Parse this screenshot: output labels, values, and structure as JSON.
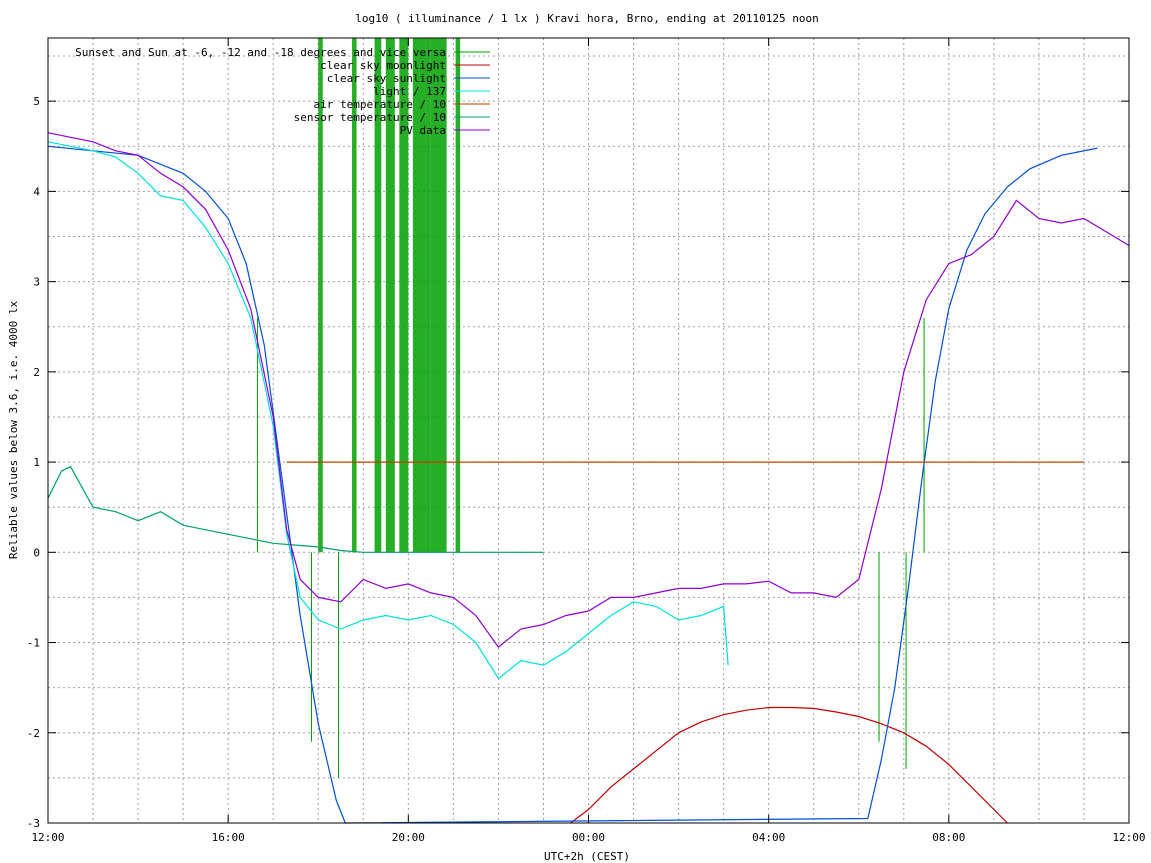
{
  "chart_data": {
    "type": "line",
    "title": "log10 ( illuminance / 1 lx ) Kravi hora, Brno, ending at 20110125 noon",
    "xlabel": "UTC+2h (CEST)",
    "ylabel": "Reliable values below 3.6, i.e. 4000 lx",
    "xlim_hours": [
      0,
      24
    ],
    "ylim": [
      -3,
      5.7
    ],
    "x_ticks": [
      {
        "h": 0,
        "label": "12:00"
      },
      {
        "h": 4,
        "label": "16:00"
      },
      {
        "h": 8,
        "label": "20:00"
      },
      {
        "h": 12,
        "label": "00:00"
      },
      {
        "h": 16,
        "label": "04:00"
      },
      {
        "h": 20,
        "label": "08:00"
      },
      {
        "h": 24,
        "label": "12:00"
      }
    ],
    "y_ticks": [
      {
        "v": -3,
        "label": "-3"
      },
      {
        "v": -2,
        "label": "-2"
      },
      {
        "v": -1,
        "label": "-1"
      },
      {
        "v": 0,
        "label": "0"
      },
      {
        "v": 1,
        "label": "1"
      },
      {
        "v": 2,
        "label": "2"
      },
      {
        "v": 3,
        "label": "3"
      },
      {
        "v": 4,
        "label": "4"
      },
      {
        "v": 5,
        "label": "5"
      }
    ],
    "grid": true,
    "legend_position": "top-left",
    "series": [
      {
        "name": "Sunset and Sun at -6, -12 and -18 degrees and vice versa",
        "color": "#00a000",
        "style": "impulses",
        "x": [
          4.65,
          5.85,
          6.45,
          18.45,
          19.05,
          19.45
        ],
        "y": [
          2.6,
          -2.1,
          -2.5,
          -2.1,
          -2.4,
          2.6
        ]
      },
      {
        "name": "clear sky moonlight",
        "color": "#c00000",
        "x": [
          11.6,
          12.0,
          12.5,
          13.0,
          13.5,
          14.0,
          14.5,
          15.0,
          15.5,
          16.0,
          16.5,
          17.0,
          17.5,
          18.0,
          18.5,
          19.0,
          19.5,
          20.0,
          20.5,
          21.0,
          21.3
        ],
        "y": [
          -3.0,
          -2.85,
          -2.6,
          -2.4,
          -2.2,
          -2.0,
          -1.88,
          -1.8,
          -1.75,
          -1.72,
          -1.72,
          -1.73,
          -1.77,
          -1.82,
          -1.9,
          -2.0,
          -2.15,
          -2.35,
          -2.6,
          -2.85,
          -3.0
        ]
      },
      {
        "name": "clear sky sunlight",
        "color": "#0050d0",
        "x": [
          0,
          1,
          2,
          3,
          3.5,
          4,
          4.4,
          4.8,
          5.2,
          5.6,
          6.0,
          6.4,
          6.6,
          18.2,
          18.5,
          18.8,
          19.1,
          19.4,
          19.7,
          20.0,
          20.4,
          20.8,
          21.3,
          21.8,
          22.5,
          23.3
        ],
        "y": [
          4.5,
          4.45,
          4.4,
          4.2,
          4.0,
          3.7,
          3.2,
          2.3,
          0.8,
          -0.7,
          -1.9,
          -2.75,
          -3.0,
          -2.95,
          -2.3,
          -1.5,
          -0.4,
          0.8,
          1.9,
          2.7,
          3.35,
          3.75,
          4.05,
          4.25,
          4.4,
          4.48
        ]
      },
      {
        "name": "light / 137",
        "color": "#00e0e0",
        "x": [
          0,
          0.5,
          1,
          1.5,
          2,
          2.5,
          3,
          3.5,
          4,
          4.5,
          5,
          5.3,
          5.6,
          6.0,
          6.5,
          7.0,
          7.5,
          8.0,
          8.5,
          9.0,
          9.5,
          10.0,
          10.5,
          11.0,
          11.5,
          12.0,
          12.5,
          13.0,
          13.5,
          14.0,
          14.5,
          15.0,
          15.1
        ],
        "y": [
          4.55,
          4.5,
          4.45,
          4.38,
          4.2,
          3.95,
          3.9,
          3.6,
          3.2,
          2.6,
          1.4,
          0.2,
          -0.5,
          -0.75,
          -0.85,
          -0.75,
          -0.7,
          -0.75,
          -0.7,
          -0.8,
          -1.0,
          -1.4,
          -1.2,
          -1.25,
          -1.1,
          -0.9,
          -0.7,
          -0.55,
          -0.6,
          -0.75,
          -0.7,
          -0.6,
          -1.25
        ]
      },
      {
        "name": "air temperature / 10",
        "color": "#c04000",
        "x": [
          5.3,
          23.0
        ],
        "y": [
          1.0,
          1.0
        ]
      },
      {
        "name": "sensor temperature / 10",
        "color": "#00a070",
        "x": [
          0,
          0.3,
          0.5,
          1,
          1.5,
          2,
          2.5,
          3,
          3.5,
          4,
          4.5,
          5,
          5.5,
          6.0,
          6.5,
          7.0,
          8.0,
          9.0,
          10.0,
          11.0
        ],
        "y": [
          0.6,
          0.9,
          0.95,
          0.5,
          0.45,
          0.35,
          0.45,
          0.3,
          0.25,
          0.2,
          0.15,
          0.1,
          0.08,
          0.06,
          0.02,
          0.0,
          0.0,
          0.0,
          0.0,
          0.0
        ]
      },
      {
        "name": "PV data",
        "color": "#9000d0",
        "x": [
          0,
          0.5,
          1,
          1.5,
          2,
          2.5,
          3,
          3.5,
          4,
          4.5,
          5,
          5.3,
          5.6,
          6.0,
          6.5,
          7.0,
          7.5,
          8.0,
          8.5,
          9.0,
          9.5,
          10.0,
          10.5,
          11.0,
          11.5,
          12.0,
          12.5,
          13.0,
          13.5,
          14.0,
          14.5,
          15.0,
          15.5,
          16.0,
          16.5,
          17.0,
          17.5,
          18.0,
          18.5,
          19.0,
          19.5,
          20.0,
          20.5,
          21.0,
          21.5,
          22.0,
          22.5,
          23.0,
          23.5,
          24.0
        ],
        "y": [
          4.65,
          4.6,
          4.55,
          4.45,
          4.4,
          4.2,
          4.05,
          3.8,
          3.35,
          2.7,
          1.5,
          0.25,
          -0.3,
          -0.5,
          -0.55,
          -0.3,
          -0.4,
          -0.35,
          -0.45,
          -0.5,
          -0.7,
          -1.05,
          -0.85,
          -0.8,
          -0.7,
          -0.65,
          -0.5,
          -0.5,
          -0.45,
          -0.4,
          -0.4,
          -0.35,
          -0.35,
          -0.32,
          -0.45,
          -0.45,
          -0.5,
          -0.3,
          0.7,
          2.0,
          2.8,
          3.2,
          3.3,
          3.5,
          3.9,
          3.7,
          3.65,
          3.7,
          3.55,
          3.4
        ]
      }
    ],
    "twilight_bars": [
      {
        "h0": 6.0,
        "h1": 6.1
      },
      {
        "h0": 6.75,
        "h1": 6.85
      },
      {
        "h0": 7.25,
        "h1": 7.4
      },
      {
        "h0": 7.5,
        "h1": 7.7
      },
      {
        "h0": 7.8,
        "h1": 8.0
      },
      {
        "h0": 8.1,
        "h1": 8.5
      },
      {
        "h0": 8.5,
        "h1": 8.85
      },
      {
        "h0": 9.05,
        "h1": 9.15
      }
    ]
  }
}
